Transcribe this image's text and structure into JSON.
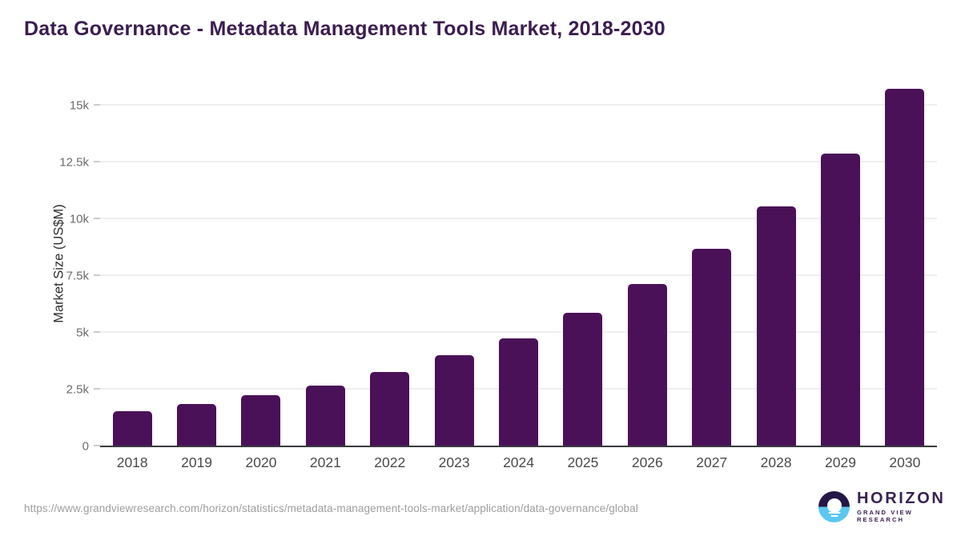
{
  "title": "Data Governance - Metadata Management Tools Market, 2018-2030",
  "chart_data": {
    "type": "bar",
    "title": "Data Governance - Metadata Management Tools Market, 2018-2030",
    "categories": [
      "2018",
      "2019",
      "2020",
      "2021",
      "2022",
      "2023",
      "2024",
      "2025",
      "2026",
      "2027",
      "2028",
      "2029",
      "2030"
    ],
    "values": [
      1550,
      1870,
      2250,
      2660,
      3270,
      4010,
      4750,
      5870,
      7150,
      8690,
      10560,
      12900,
      15730
    ],
    "xlabel": "",
    "ylabel": "Market Size (US$M)",
    "ylim": [
      0,
      16000
    ],
    "yticks": [
      {
        "value": 0,
        "label": "0"
      },
      {
        "value": 2500,
        "label": "2.5k"
      },
      {
        "value": 5000,
        "label": "5k"
      },
      {
        "value": 7500,
        "label": "7.5k"
      },
      {
        "value": 10000,
        "label": "10k"
      },
      {
        "value": 12500,
        "label": "12.5k"
      },
      {
        "value": 15000,
        "label": "15k"
      }
    ],
    "grid": true,
    "legend": "none",
    "bar_color": "#4a1158"
  },
  "colors": {
    "title": "#3b1d4f",
    "bar": "#4a1158",
    "axis_line": "#3a3a40",
    "gridline": "#efefef",
    "tick_label": "#6b6b6b",
    "logo_dark": "#241646",
    "logo_blue": "#5ac8f0",
    "logo_text": "#3a2153"
  },
  "footer": {
    "source_url": "https://www.grandviewresearch.com/horizon/statistics/metadata-management-tools-market/application/data-governance/global",
    "logo": {
      "name": "HORIZON",
      "tagline": "GRAND VIEW RESEARCH"
    }
  }
}
